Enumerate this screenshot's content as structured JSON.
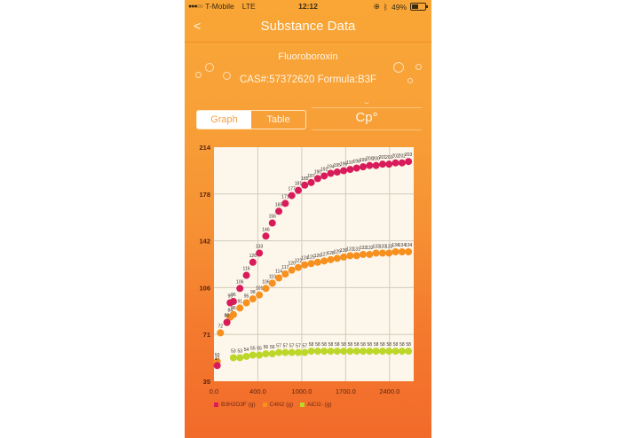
{
  "status_bar": {
    "signal": "●●●○○",
    "carrier": "T-Mobile",
    "network": "LTE",
    "time": "12:12",
    "battery": "49%",
    "icons": [
      "orientation-lock-icon",
      "bluetooth-icon",
      "battery-icon"
    ]
  },
  "nav": {
    "back_label": "<",
    "title": "Substance Data"
  },
  "substance": {
    "name": "Fluoroboroxin",
    "info": "CAS#:57372620 Formula:B3F"
  },
  "view_toggle": {
    "options": [
      "Graph",
      "Table"
    ],
    "selected": "Graph"
  },
  "property": {
    "label": "Cp°"
  },
  "colors": {
    "series1": "#d81b5a",
    "series2": "#f6901f",
    "series3": "#bcd62a",
    "plot_bg": "#fdf6ea",
    "grid": "#d2cbbd",
    "axis_text": "#5a2410"
  },
  "chart_data": {
    "type": "scatter",
    "title": "",
    "xlabel": "",
    "ylabel": "Cp°",
    "xlim": [
      0,
      2900
    ],
    "ylim": [
      35,
      214
    ],
    "x_ticks": [
      "0.0",
      "400.0",
      "1000.0",
      "1700.0",
      "2400.0"
    ],
    "y_ticks": [
      "35",
      "71",
      "106",
      "142",
      "178",
      "214"
    ],
    "grid": true,
    "legend_position": "bottom",
    "series": [
      {
        "name": "B3H2O3F (g)",
        "points": [
          [
            50,
            47
          ],
          [
            200,
            80
          ],
          [
            250,
            95
          ],
          [
            300,
            96
          ],
          [
            400,
            106
          ],
          [
            500,
            116
          ],
          [
            600,
            126
          ],
          [
            700,
            133
          ],
          [
            800,
            146
          ],
          [
            900,
            156
          ],
          [
            1000,
            165
          ],
          [
            1100,
            171
          ],
          [
            1200,
            177
          ],
          [
            1300,
            181
          ],
          [
            1400,
            185
          ],
          [
            1500,
            187
          ],
          [
            1600,
            190
          ],
          [
            1700,
            192
          ],
          [
            1800,
            194
          ],
          [
            1900,
            195
          ],
          [
            2000,
            196
          ],
          [
            2100,
            197
          ],
          [
            2200,
            198
          ],
          [
            2300,
            199
          ],
          [
            2400,
            200
          ],
          [
            2500,
            200
          ],
          [
            2600,
            201
          ],
          [
            2700,
            201
          ],
          [
            2800,
            202
          ],
          [
            2900,
            202
          ],
          [
            3000,
            203
          ]
        ]
      },
      {
        "name": "C4N2 (g)",
        "points": [
          [
            50,
            50
          ],
          [
            100,
            72
          ],
          [
            200,
            80
          ],
          [
            250,
            84
          ],
          [
            300,
            86
          ],
          [
            400,
            91
          ],
          [
            500,
            95
          ],
          [
            600,
            98
          ],
          [
            700,
            101
          ],
          [
            800,
            106
          ],
          [
            900,
            110
          ],
          [
            1000,
            114
          ],
          [
            1100,
            117
          ],
          [
            1200,
            120
          ],
          [
            1300,
            122
          ],
          [
            1400,
            124
          ],
          [
            1500,
            125
          ],
          [
            1600,
            126
          ],
          [
            1700,
            127
          ],
          [
            1800,
            128
          ],
          [
            1900,
            129
          ],
          [
            2000,
            130
          ],
          [
            2100,
            131
          ],
          [
            2200,
            131
          ],
          [
            2300,
            132
          ],
          [
            2400,
            132
          ],
          [
            2500,
            133
          ],
          [
            2600,
            133
          ],
          [
            2700,
            133
          ],
          [
            2800,
            134
          ],
          [
            2900,
            134
          ],
          [
            3000,
            134
          ]
        ]
      },
      {
        "name": "AlCl2- (g)",
        "points": [
          [
            300,
            53
          ],
          [
            400,
            53
          ],
          [
            500,
            54
          ],
          [
            600,
            55
          ],
          [
            700,
            55
          ],
          [
            800,
            56
          ],
          [
            900,
            56
          ],
          [
            1000,
            57
          ],
          [
            1100,
            57
          ],
          [
            1200,
            57
          ],
          [
            1300,
            57
          ],
          [
            1400,
            57
          ],
          [
            1500,
            58
          ],
          [
            1600,
            58
          ],
          [
            1700,
            58
          ],
          [
            1800,
            58
          ],
          [
            1900,
            58
          ],
          [
            2000,
            58
          ],
          [
            2100,
            58
          ],
          [
            2200,
            58
          ],
          [
            2300,
            58
          ],
          [
            2400,
            58
          ],
          [
            2500,
            58
          ],
          [
            2600,
            58
          ],
          [
            2700,
            58
          ],
          [
            2800,
            58
          ],
          [
            2900,
            58
          ],
          [
            3000,
            58
          ]
        ]
      }
    ]
  },
  "legend": [
    {
      "label": "B3H2O3F (g)",
      "color": "#d81b5a"
    },
    {
      "label": "C4N2 (g)",
      "color": "#f6901f"
    },
    {
      "label": "AlCl2- (g)",
      "color": "#bcd62a"
    }
  ]
}
